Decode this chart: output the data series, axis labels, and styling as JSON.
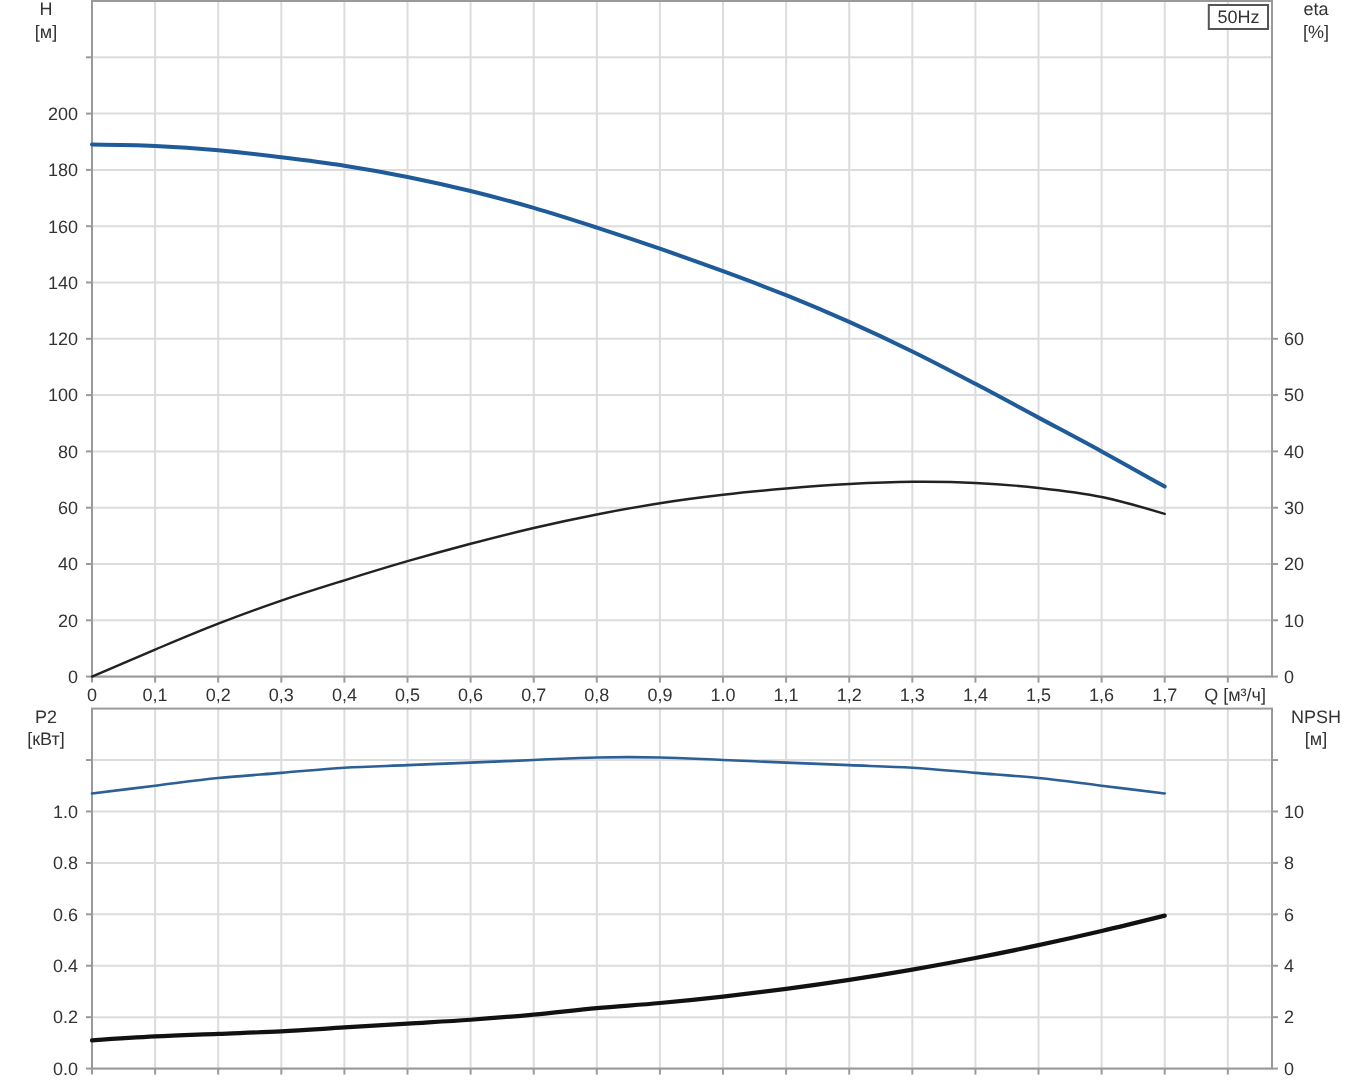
{
  "chart_data": [
    {
      "type": "line",
      "ylabel": "H\n[м]",
      "y2label": "eta\n[%]",
      "xlabel": "Q [м³/ч]",
      "annotations": [
        "50Hz"
      ],
      "x": [
        0,
        0.1,
        0.2,
        0.3,
        0.4,
        0.5,
        0.6,
        0.7,
        0.8,
        0.9,
        1.0,
        1.1,
        1.2,
        1.3,
        1.4,
        1.5,
        1.6,
        1.7
      ],
      "series": [
        {
          "color": "#1f5b99",
          "values": [
            189,
            188.5,
            187,
            184.5,
            181.5,
            177.5,
            172.5,
            166.5,
            159.5,
            152,
            144,
            135.5,
            126,
            115.5,
            104,
            92,
            80,
            67.5
          ]
        },
        {
          "color": "#222222",
          "axis": "y2",
          "values": [
            0,
            4.8,
            9.4,
            13.5,
            17.1,
            20.5,
            23.6,
            26.4,
            28.8,
            30.8,
            32.3,
            33.4,
            34.2,
            34.6,
            34.4,
            33.5,
            31.9,
            28.9
          ]
        }
      ],
      "xlim": [
        0,
        1.87
      ],
      "xticks": [
        0,
        {
          "value": 0.1,
          "label": "0,1"
        },
        {
          "value": 0.2,
          "label": "0,2"
        },
        {
          "value": 0.3,
          "label": "0,3"
        },
        {
          "value": 0.4,
          "label": "0,4"
        },
        {
          "value": 0.5,
          "label": "0,5"
        },
        {
          "value": 0.6,
          "label": "0,6"
        },
        {
          "value": 0.7,
          "label": "0,7"
        },
        {
          "value": 0.8,
          "label": "0,8"
        },
        {
          "value": 0.9,
          "label": "0,9"
        },
        {
          "value": 1,
          "label": "1.0"
        },
        {
          "value": 1.1,
          "label": "1,1"
        },
        {
          "value": 1.2,
          "label": "1,2"
        },
        {
          "value": 1.3,
          "label": "1,3"
        },
        {
          "value": 1.4,
          "label": "1,4"
        },
        {
          "value": 1.5,
          "label": "1,5"
        },
        {
          "value": 1.6,
          "label": "1,6"
        },
        {
          "value": 1.7,
          "label": "1,7"
        },
        {
          "value": 1.8,
          "label": null
        }
      ],
      "ylim": [
        0,
        240
      ],
      "yticks": [
        0,
        20,
        40,
        60,
        80,
        100,
        120,
        140,
        160,
        180,
        200,
        {
          "value": 220,
          "label": null
        }
      ],
      "y2lim": [
        0,
        120
      ],
      "y2ticks": [
        0,
        10,
        20,
        30,
        40,
        50,
        60
      ],
      "grid": true
    },
    {
      "type": "line",
      "ylabel": "P2\n[кВт]",
      "y2label": "NPSH\n[м]",
      "x": [
        0,
        0.1,
        0.2,
        0.3,
        0.4,
        0.5,
        0.6,
        0.7,
        0.8,
        0.9,
        1.0,
        1.1,
        1.2,
        1.3,
        1.4,
        1.5,
        1.6,
        1.7
      ],
      "series": [
        {
          "color": "#2b5f96",
          "values": [
            1.07,
            1.1,
            1.13,
            1.15,
            1.17,
            1.18,
            1.19,
            1.2,
            1.21,
            1.21,
            1.2,
            1.19,
            1.18,
            1.17,
            1.15,
            1.13,
            1.1,
            1.07
          ]
        },
        {
          "color": "#111111",
          "axis": "y2",
          "values": [
            1.1,
            1.25,
            1.35,
            1.45,
            1.6,
            1.75,
            1.9,
            2.1,
            2.35,
            2.55,
            2.8,
            3.1,
            3.45,
            3.85,
            4.3,
            4.8,
            5.35,
            5.95
          ]
        }
      ],
      "xlim": [
        0,
        1.87
      ],
      "xticks": [
        0,
        0.1,
        0.2,
        0.3,
        0.4,
        0.5,
        0.6,
        0.7,
        0.8,
        0.9,
        1,
        1.1,
        1.2,
        1.3,
        1.4,
        1.5,
        1.6,
        1.7,
        1.8
      ],
      "ylim": [
        0,
        1.4
      ],
      "yticks": [
        {
          "value": 0,
          "label": "0.0"
        },
        0.2,
        0.4,
        0.6,
        0.8,
        {
          "value": 1,
          "label": "1.0"
        },
        {
          "value": 1.2,
          "label": null
        }
      ],
      "y2lim": [
        0,
        14
      ],
      "y2ticks": [
        0,
        2,
        4,
        6,
        8,
        10,
        {
          "value": 12,
          "label": null
        }
      ],
      "grid": true,
      "tick_labels": "y"
    }
  ]
}
